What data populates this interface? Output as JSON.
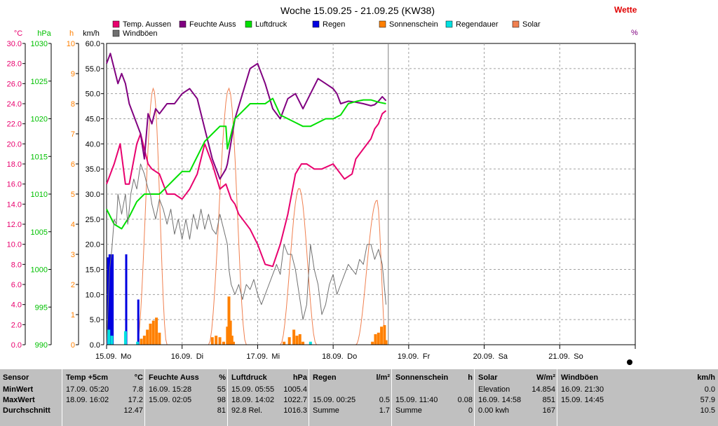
{
  "chart_data": {
    "type": "line",
    "title": "Woche 15.09.25 - 21.09.25 (KW38)",
    "title_right": "Wette",
    "right_unit": "%",
    "days": [
      {
        "label": "15.09.",
        "weekday": "Mo"
      },
      {
        "label": "16.09.",
        "weekday": "Di"
      },
      {
        "label": "17.09.",
        "weekday": "Mi"
      },
      {
        "label": "18.09.",
        "weekday": "Do"
      },
      {
        "label": "19.09.",
        "weekday": "Fr"
      },
      {
        "label": "20.09.",
        "weekday": "Sa"
      },
      {
        "label": "21.09.",
        "weekday": "So"
      }
    ],
    "axes": [
      {
        "key": "temp",
        "unit": "°C",
        "color": "#e8006e",
        "min": 0,
        "max": 30,
        "ticks": [
          "0.0",
          "2.0",
          "4.0",
          "6.0",
          "8.0",
          "10.0",
          "12.0",
          "14.0",
          "16.0",
          "18.0",
          "20.0",
          "22.0",
          "24.0",
          "26.0",
          "28.0",
          "30.0"
        ]
      },
      {
        "key": "press",
        "unit": "hPa",
        "color": "#00c000",
        "min": 990,
        "max": 1030,
        "ticks": [
          "990",
          "995",
          "1000",
          "1005",
          "1010",
          "1015",
          "1020",
          "1025",
          "1030"
        ]
      },
      {
        "key": "hours",
        "unit": "h",
        "color": "#ff7f00",
        "min": 0,
        "max": 10,
        "ticks": [
          "0",
          "1",
          "2",
          "3",
          "4",
          "5",
          "6",
          "7",
          "8",
          "9",
          "10"
        ]
      },
      {
        "key": "wind",
        "unit": "km/h",
        "color": "#606060",
        "min": 0,
        "max": 60,
        "ticks": [
          "0.0",
          "5.0",
          "10.0",
          "15.0",
          "20.0",
          "25.0",
          "30.0",
          "35.0",
          "40.0",
          "45.0",
          "50.0",
          "55.0",
          "60.0"
        ]
      }
    ],
    "legend": [
      {
        "name": "Temp. Aussen",
        "color": "#e8006e"
      },
      {
        "name": "Feuchte Auss",
        "color": "#800080"
      },
      {
        "name": "Luftdruck",
        "color": "#00e000"
      },
      {
        "name": "Regen",
        "color": "#0000e0"
      },
      {
        "name": "Sonnenschein",
        "color": "#ff8000"
      },
      {
        "name": "Regendauer",
        "color": "#00e0e0"
      },
      {
        "name": "Solar",
        "color": "#f08050"
      },
      {
        "name": "Windböen",
        "color": "#707070"
      }
    ],
    "series": [
      {
        "name": "Temp. Aussen",
        "axis": "temp",
        "color": "#e8006e",
        "width": 2,
        "x": [
          0.0,
          0.1,
          0.18,
          0.25,
          0.3,
          0.4,
          0.45,
          0.55,
          0.6,
          0.7,
          0.75,
          0.8,
          0.9,
          1.0,
          1.1,
          1.2,
          1.3,
          1.4,
          1.5,
          1.58,
          1.65,
          1.7,
          1.75,
          1.8,
          1.9,
          2.0,
          2.1,
          2.2,
          2.3,
          2.4,
          2.45,
          2.5,
          2.58,
          2.65,
          2.75,
          2.85,
          3.0,
          3.05,
          3.15,
          3.25,
          3.3,
          3.4,
          3.5,
          3.55,
          3.6,
          3.65,
          3.7
        ],
        "y": [
          16.0,
          18.0,
          20.0,
          16.0,
          16.0,
          20.0,
          21.0,
          18.0,
          17.5,
          17.0,
          16.0,
          15.0,
          15.0,
          14.5,
          15.5,
          17.0,
          20.0,
          18.0,
          15.5,
          16.0,
          14.5,
          14.0,
          13.0,
          12.5,
          11.5,
          10.0,
          8.0,
          7.8,
          10.0,
          13.0,
          15.0,
          17.0,
          18.0,
          18.0,
          17.5,
          17.5,
          18.0,
          17.5,
          16.5,
          17.0,
          18.5,
          19.5,
          20.5,
          21.5,
          22.0,
          23.0,
          23.3
        ]
      },
      {
        "name": "Feuchte Auss",
        "axis": "wind",
        "color": "#800080",
        "width": 2,
        "x": [
          0.0,
          0.05,
          0.1,
          0.15,
          0.2,
          0.25,
          0.3,
          0.4,
          0.45,
          0.5,
          0.55,
          0.6,
          0.65,
          0.7,
          0.8,
          0.9,
          1.0,
          1.1,
          1.2,
          1.3,
          1.4,
          1.5,
          1.58,
          1.6,
          1.7,
          1.8,
          1.9,
          2.0,
          2.1,
          2.2,
          2.3,
          2.4,
          2.5,
          2.6,
          2.7,
          2.8,
          2.9,
          3.0,
          3.05,
          3.1,
          3.2,
          3.3,
          3.4,
          3.5,
          3.55,
          3.6,
          3.65,
          3.7
        ],
        "y": [
          56,
          58,
          55,
          52,
          54,
          52,
          48,
          44,
          42,
          37,
          46,
          44,
          47,
          46,
          48,
          48,
          50,
          51,
          49,
          43,
          37,
          33,
          35,
          36,
          45,
          50,
          55,
          56,
          52,
          47,
          45,
          49,
          50,
          47,
          50,
          53,
          52,
          51,
          50,
          48,
          48.5,
          48.3,
          48.0,
          47.6,
          47.8,
          48.5,
          49.4,
          48.6
        ]
      },
      {
        "name": "Luftdruck",
        "axis": "press",
        "color": "#00e000",
        "width": 2,
        "x": [
          0.0,
          0.1,
          0.2,
          0.3,
          0.4,
          0.5,
          0.6,
          0.7,
          0.8,
          0.9,
          1.0,
          1.1,
          1.2,
          1.3,
          1.4,
          1.5,
          1.58,
          1.6,
          1.7,
          1.8,
          1.9,
          2.0,
          2.1,
          2.2,
          2.3,
          2.4,
          2.5,
          2.6,
          2.7,
          2.8,
          2.9,
          3.0,
          3.1,
          3.2,
          3.3,
          3.4,
          3.5,
          3.6,
          3.7
        ],
        "y": [
          1008,
          1006,
          1005.4,
          1007,
          1009,
          1010,
          1010,
          1010,
          1011,
          1012,
          1013,
          1013,
          1015,
          1017,
          1018,
          1019,
          1019,
          1016,
          1020,
          1021,
          1022,
          1022,
          1022,
          1022.7,
          1020.5,
          1020,
          1019.5,
          1019,
          1019,
          1019.5,
          1020,
          1020,
          1020.5,
          1022,
          1022.3,
          1022.5,
          1022.5,
          1022.2,
          1022
        ],
        "smooth": true
      },
      {
        "name": "Windböen",
        "axis": "wind",
        "color": "#707070",
        "width": 1,
        "x": [
          0.0,
          0.04,
          0.07,
          0.1,
          0.13,
          0.15,
          0.2,
          0.25,
          0.28,
          0.32,
          0.36,
          0.4,
          0.45,
          0.5,
          0.55,
          0.58,
          0.6,
          0.65,
          0.7,
          0.75,
          0.8,
          0.85,
          0.9,
          0.95,
          1.0,
          1.05,
          1.1,
          1.15,
          1.2,
          1.25,
          1.3,
          1.35,
          1.4,
          1.45,
          1.5,
          1.55,
          1.6,
          1.62,
          1.65,
          1.7,
          1.75,
          1.8,
          1.85,
          1.9,
          1.95,
          2.0,
          2.05,
          2.1,
          2.15,
          2.2,
          2.25,
          2.3,
          2.35,
          2.4,
          2.45,
          2.5,
          2.55,
          2.6,
          2.65,
          2.7,
          2.75,
          2.8,
          2.85,
          2.9,
          2.95,
          3.0,
          3.05,
          3.1,
          3.15,
          3.2,
          3.25,
          3.3,
          3.35,
          3.4,
          3.45,
          3.5,
          3.55,
          3.6,
          3.65,
          3.7
        ],
        "y": [
          0,
          15,
          19,
          25,
          24,
          30,
          26,
          30,
          24,
          30,
          33,
          31,
          36,
          34,
          31,
          30,
          28,
          25,
          29,
          27,
          24,
          27,
          22,
          25,
          21,
          25,
          21,
          26,
          23,
          27,
          23,
          26,
          23,
          22,
          26,
          23,
          20,
          15,
          12,
          10,
          12,
          9,
          12,
          11,
          13,
          10,
          8,
          10,
          12,
          14,
          16,
          14,
          20,
          18,
          18,
          15,
          10,
          5,
          8,
          20,
          15,
          12,
          6,
          8,
          12,
          14,
          10,
          12,
          14,
          16,
          15,
          14,
          17,
          16,
          20,
          20,
          17,
          19,
          16,
          8
        ]
      }
    ],
    "bars": [
      {
        "name": "Regen",
        "axis": "hours",
        "color": "#0000e0",
        "values": [
          [
            0.02,
            2.9
          ],
          [
            0.04,
            3.0
          ],
          [
            0.06,
            3.0
          ],
          [
            0.08,
            3.0
          ],
          [
            0.26,
            3.0
          ],
          [
            0.42,
            1.5
          ]
        ]
      },
      {
        "name": "Sonnenschein",
        "axis": "hours",
        "color": "#ff8000",
        "values": [
          [
            0.46,
            0.2
          ],
          [
            0.5,
            0.3
          ],
          [
            0.54,
            0.5
          ],
          [
            0.58,
            0.7
          ],
          [
            0.62,
            0.8
          ],
          [
            0.66,
            0.9
          ],
          [
            0.7,
            0.4
          ],
          [
            1.4,
            0.25
          ],
          [
            1.45,
            0.3
          ],
          [
            1.5,
            0.25
          ],
          [
            1.55,
            0.1
          ],
          [
            1.6,
            0.6
          ],
          [
            1.62,
            1.6
          ],
          [
            1.64,
            0.8
          ],
          [
            1.66,
            0.3
          ],
          [
            1.68,
            0.1
          ],
          [
            2.35,
            0.1
          ],
          [
            2.42,
            0.25
          ],
          [
            2.48,
            0.5
          ],
          [
            2.52,
            0.3
          ],
          [
            2.56,
            0.35
          ],
          [
            2.6,
            0.1
          ],
          [
            3.52,
            0.1
          ],
          [
            3.56,
            0.35
          ],
          [
            3.6,
            0.4
          ],
          [
            3.64,
            0.6
          ],
          [
            3.68,
            0.65
          ],
          [
            3.7,
            0.15
          ]
        ]
      },
      {
        "name": "Regendauer",
        "axis": "hours",
        "color": "#00e0e0",
        "values": [
          [
            0.03,
            0.5
          ],
          [
            0.07,
            0.3
          ],
          [
            0.25,
            0.45
          ],
          [
            0.41,
            0.1
          ],
          [
            2.7,
            0.1
          ]
        ]
      }
    ],
    "solar_curves": [
      {
        "start": 0.4,
        "peak": 0.62,
        "end": 0.8,
        "peak_value": 851
      },
      {
        "start": 1.35,
        "peak": 1.62,
        "end": 1.85,
        "peak_value": 851
      },
      {
        "start": 2.3,
        "peak": 2.55,
        "end": 2.78,
        "peak_value": 520
      },
      {
        "start": 3.3,
        "peak": 3.58,
        "end": 3.7,
        "peak_value": 480
      }
    ],
    "solar_max": 1000,
    "now_x": 3.73,
    "ylim_days": [
      0,
      7
    ]
  },
  "stats": {
    "sections": [
      {
        "title": "Sensor",
        "unit": "",
        "rows": [
          [
            "MinWert",
            ""
          ],
          [
            "MaxWert",
            ""
          ],
          [
            "Durchschnitt",
            ""
          ]
        ]
      },
      {
        "title": "Temp +5cm",
        "unit": "°C",
        "rows": [
          [
            "17.09.  05:20",
            "7.8"
          ],
          [
            "18.09.  16:02",
            "17.2"
          ],
          [
            "",
            "12.47"
          ]
        ]
      },
      {
        "title": "Feuchte Auss",
        "unit": "%",
        "rows": [
          [
            "16.09.  15:28",
            "55"
          ],
          [
            "15.09.  02:05",
            "98"
          ],
          [
            "",
            "81"
          ]
        ]
      },
      {
        "title": "Luftdruck",
        "unit": "hPa",
        "rows": [
          [
            "15.09.  05:55",
            "1005.4"
          ],
          [
            "18.09.  14:02",
            "1022.7"
          ],
          [
            "92.8 Rel.",
            "1016.3"
          ]
        ]
      },
      {
        "title": "Regen",
        "unit": "l/m²",
        "rows": [
          [
            "",
            ""
          ],
          [
            "15.09.  00:25",
            "0.5"
          ],
          [
            "Summe",
            "1.7"
          ]
        ]
      },
      {
        "title": "Sonnenschein",
        "unit": "h",
        "rows": [
          [
            "",
            ""
          ],
          [
            "15.09.  11:40",
            "0.08"
          ],
          [
            "Summe",
            "0"
          ]
        ]
      },
      {
        "title": "Solar",
        "unit": "W/m²",
        "rows": [
          [
            "Elevation",
            "14.854"
          ],
          [
            "16.09.  14:58",
            "851"
          ],
          [
            "0.00 kwh",
            "167"
          ]
        ]
      },
      {
        "title": "Windböen",
        "unit": "km/h",
        "rows": [
          [
            "16.09.  21:30",
            "0.0"
          ],
          [
            "15.09.  14:45",
            "57.9"
          ],
          [
            "",
            "10.5"
          ]
        ]
      }
    ]
  }
}
